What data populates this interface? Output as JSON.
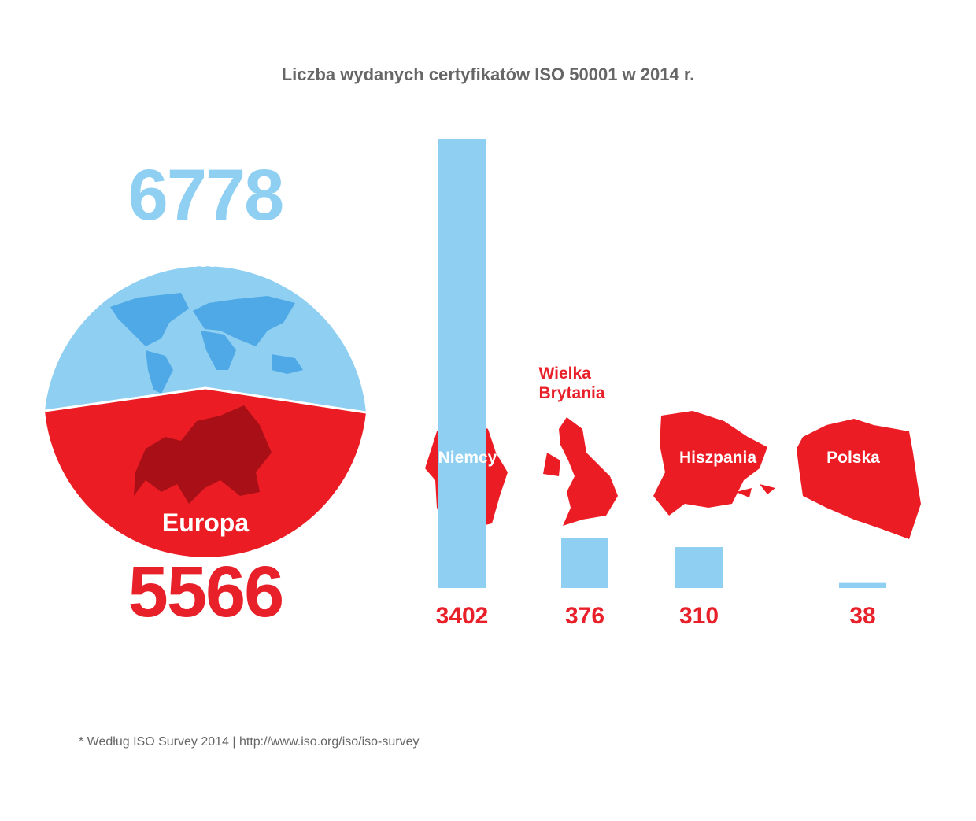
{
  "title": "Liczba wydanych certyfikatów ISO 50001 w 2014 r.",
  "summary": {
    "world": {
      "label": "Świat",
      "value": "6778"
    },
    "europe": {
      "label": "Europa",
      "value": "5566"
    }
  },
  "chart_data": {
    "type": "bar",
    "categories": [
      "Niemcy",
      "Wielka Brytania",
      "Hiszpania",
      "Polska"
    ],
    "values": [
      3402,
      376,
      310,
      38
    ],
    "color": "#8ecff2",
    "label_color": "#e8202a"
  },
  "footnote": "* Według ISO Survey 2014 | http://www.iso.org/iso/iso-survey"
}
